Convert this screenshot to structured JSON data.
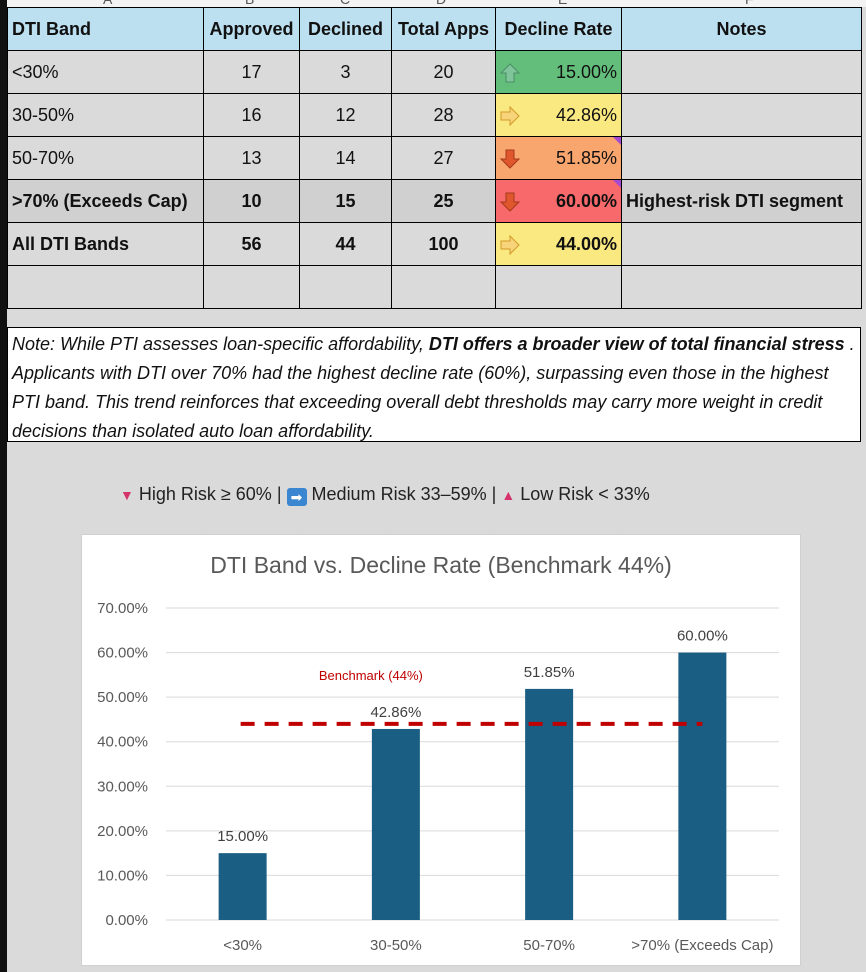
{
  "column_letters": [
    "A",
    "B",
    "C",
    "D",
    "E",
    "F"
  ],
  "table": {
    "headers": [
      "DTI Band",
      "Approved",
      "Declined",
      "Total Apps",
      "Decline Rate",
      "Notes"
    ],
    "rows": [
      {
        "band": "<30%",
        "approved": "17",
        "declined": "3",
        "total": "20",
        "rate": "15.00%",
        "notes": "",
        "icon": "arrow-up-green-icon"
      },
      {
        "band": "30-50%",
        "approved": "16",
        "declined": "12",
        "total": "28",
        "rate": "42.86%",
        "notes": "",
        "icon": "arrow-right-yellow-icon"
      },
      {
        "band": "50-70%",
        "approved": "13",
        "declined": "14",
        "total": "27",
        "rate": "51.85%",
        "notes": "",
        "icon": "arrow-down-red-icon"
      },
      {
        "band": ">70% (Exceeds Cap)",
        "approved": "10",
        "declined": "15",
        "total": "25",
        "rate": "60.00%",
        "notes": "Highest-risk DTI segment",
        "icon": "arrow-down-red-icon"
      },
      {
        "band": "All DTI Bands",
        "approved": "56",
        "declined": "44",
        "total": "100",
        "rate": "44.00%",
        "notes": "",
        "icon": "arrow-right-yellow-icon"
      }
    ]
  },
  "note": {
    "intro": "Note: While PTI assesses loan-specific affordability, ",
    "emphasis": "DTI offers a broader view of total financial stress",
    "rest": " . Applicants with DTI over 70% had the highest decline rate (60%), surpassing even those in the highest PTI band. This trend reinforces that exceeding overall debt thresholds may carry more  weight in credit decisions than isolated auto loan affordability."
  },
  "legend": {
    "high": "High Risk ≥ 60%",
    "sep1": "|",
    "medium": "Medium Risk 33–59%",
    "sep2": "|",
    "low": "Low Risk < 33%"
  },
  "colors": {
    "header_fill": "#bde0f1",
    "green": "#63be7b",
    "yellow": "#fae881",
    "orange": "#f9a56e",
    "red": "#f8696b",
    "bar": "#1a5e83",
    "benchmark": "#c00000"
  },
  "chart_data": {
    "type": "bar",
    "title": "DTI Band vs. Decline Rate (Benchmark 44%)",
    "categories": [
      "<30%",
      "30-50%",
      "50-70%",
      ">70% (Exceeds Cap)"
    ],
    "values": [
      15.0,
      42.86,
      51.85,
      60.0
    ],
    "data_labels": [
      "15.00%",
      "42.86%",
      "51.85%",
      "60.00%"
    ],
    "ylim": [
      0,
      70
    ],
    "yticks": [
      "0.00%",
      "10.00%",
      "20.00%",
      "30.00%",
      "40.00%",
      "50.00%",
      "60.00%",
      "70.00%"
    ],
    "benchmark": {
      "value": 44,
      "label": "Benchmark (44%)"
    },
    "grid": true,
    "xlabel": "",
    "ylabel": ""
  }
}
